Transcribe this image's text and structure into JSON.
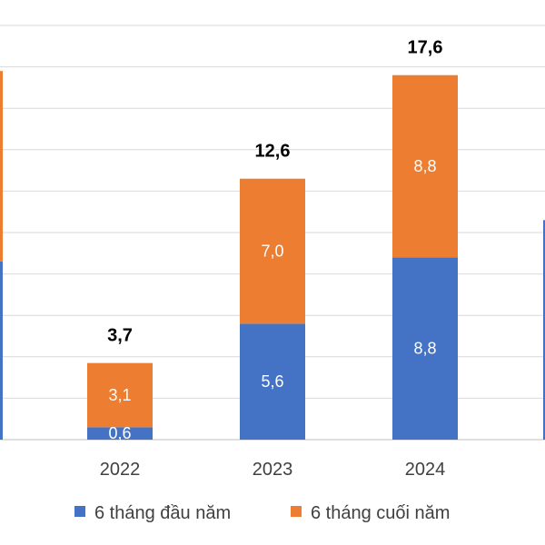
{
  "chart_data": {
    "type": "bar",
    "stacked": true,
    "categories": [
      "2022",
      "2023",
      "2024"
    ],
    "series": [
      {
        "name": "6 tháng đầu năm",
        "values": [
          0.6,
          5.6,
          8.8
        ],
        "labels": [
          "0,6",
          "5,6",
          "8,8"
        ],
        "color": "#4472C4"
      },
      {
        "name": "6 tháng cuối năm",
        "values": [
          3.1,
          7.0,
          8.8
        ],
        "labels": [
          "3,1",
          "7,0",
          "8,8"
        ],
        "color": "#ED7D31"
      }
    ],
    "totals": [
      3.7,
      12.6,
      17.6
    ],
    "total_labels": [
      "3,7",
      "12,6",
      "17,6"
    ],
    "ylim": [
      0,
      20
    ],
    "grid": true,
    "legend_position": "bottom",
    "gridline_color": "#D9D9D9",
    "partial_left_bar": {
      "series_colors": [
        "#4472C4",
        "#ED7D31"
      ]
    },
    "partial_right_bar": {
      "series_colors": [
        "#4472C4"
      ]
    }
  }
}
